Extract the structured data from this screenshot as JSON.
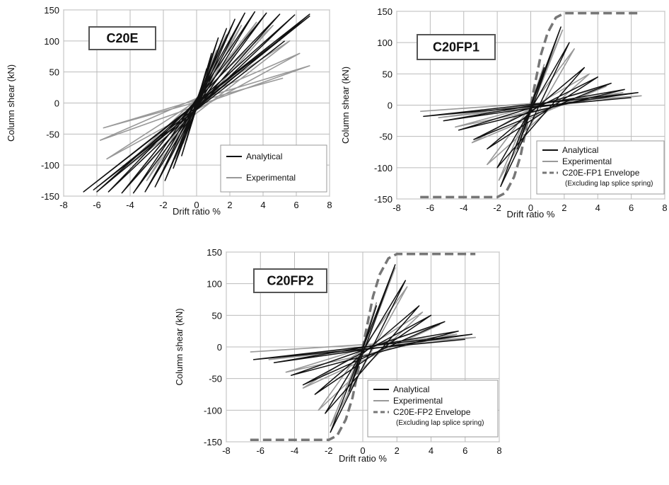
{
  "chart_data": [
    {
      "id": "c20e",
      "type": "line",
      "label": "C20E",
      "xlabel": "Drift ratio %",
      "ylabel": "Column shear (kN)",
      "xlim": [
        -8,
        8
      ],
      "ylim": [
        -150,
        150
      ],
      "xticks": [
        -8,
        -6,
        -4,
        -2,
        0,
        2,
        4,
        6,
        8
      ],
      "yticks": [
        150,
        100,
        50,
        0,
        -50,
        -100,
        -150
      ],
      "grid": true,
      "legend_position": "bottom-right",
      "series": [
        {
          "name": "Analytical",
          "color": "#111111",
          "style": "solid",
          "x": [
            0,
            0.6,
            -0.6,
            0.9,
            -0.9,
            1.3,
            -1.4,
            1.8,
            -1.9,
            2.3,
            -2.5,
            2.9,
            -3.1,
            3.5,
            -3.8,
            4.2,
            -4.5,
            5.0,
            -5.3,
            5.9,
            -6.0,
            6.8,
            -6.8,
            6.8,
            -6.2,
            5.3
          ],
          "y": [
            0,
            55,
            -60,
            80,
            -85,
            105,
            -105,
            120,
            -125,
            135,
            -135,
            145,
            -143,
            147,
            -145,
            145,
            -145,
            143,
            -143,
            142,
            -143,
            143,
            -143,
            140,
            -140,
            100
          ]
        },
        {
          "name": "Experimental",
          "color": "#999999",
          "style": "solid",
          "x": [
            0,
            0.7,
            -0.8,
            1.2,
            -1.3,
            1.8,
            -2.0,
            2.7,
            -3.0,
            3.6,
            -4.0,
            4.6,
            -5.0,
            5.6,
            -5.4,
            6.2,
            -5.8,
            6.8,
            -5.6,
            5.2
          ],
          "y": [
            0,
            60,
            -65,
            85,
            -90,
            110,
            -110,
            125,
            -125,
            130,
            -130,
            125,
            -120,
            100,
            -90,
            80,
            -60,
            60,
            -40,
            40
          ]
        }
      ]
    },
    {
      "id": "c20fp1",
      "type": "line",
      "label": "C20FP1",
      "xlabel": "Drift ratio %",
      "ylabel": "Column shear (kN)",
      "xlim": [
        -8,
        8
      ],
      "ylim": [
        -150,
        150
      ],
      "xticks": [
        -8,
        -6,
        -4,
        -2,
        0,
        2,
        4,
        6,
        8
      ],
      "yticks": [
        150,
        100,
        50,
        0,
        -50,
        -100,
        -150
      ],
      "grid": true,
      "legend_position": "bottom-right",
      "series": [
        {
          "name": "Analytical",
          "color": "#111111",
          "style": "solid",
          "x": [
            0,
            0.8,
            -0.8,
            1.8,
            -1.8,
            2.3,
            -2.0,
            3.2,
            -2.6,
            4.0,
            -3.4,
            4.8,
            -4.3,
            5.6,
            -5.2,
            6.4,
            -6.4,
            6.0
          ],
          "y": [
            0,
            60,
            -70,
            125,
            -130,
            100,
            -100,
            60,
            -70,
            45,
            -55,
            35,
            -40,
            25,
            -25,
            20,
            -18,
            12
          ]
        },
        {
          "name": "Experimental",
          "color": "#999999",
          "style": "solid",
          "x": [
            0,
            0.8,
            -0.9,
            1.9,
            -1.9,
            2.6,
            -2.6,
            3.5,
            -3.5,
            4.5,
            -4.5,
            5.5,
            -5.5,
            6.6,
            -6.6
          ],
          "y": [
            0,
            65,
            -70,
            120,
            -120,
            90,
            -95,
            50,
            -60,
            30,
            -35,
            20,
            -20,
            15,
            -10
          ]
        },
        {
          "name": "C20E-FP1 Envelope",
          "color": "#777777",
          "style": "dashed",
          "x": [
            -6.6,
            -2.0,
            -1.5,
            -1.0,
            -0.6,
            0,
            0.6,
            1.0,
            1.5,
            2.0,
            6.6
          ],
          "y": [
            -147,
            -147,
            -140,
            -115,
            -80,
            0,
            80,
            115,
            140,
            147,
            147
          ]
        }
      ]
    },
    {
      "id": "c20fp2",
      "type": "line",
      "label": "C20FP2",
      "xlabel": "Drift ratio %",
      "ylabel": "Column shear (kN)",
      "xlim": [
        -8,
        8
      ],
      "ylim": [
        -150,
        150
      ],
      "xticks": [
        -8,
        -6,
        -4,
        -2,
        0,
        2,
        4,
        6,
        8
      ],
      "yticks": [
        150,
        100,
        50,
        0,
        -50,
        -100,
        -150
      ],
      "grid": true,
      "legend_position": "bottom-right",
      "series": [
        {
          "name": "Analytical",
          "color": "#111111",
          "style": "solid",
          "x": [
            0,
            0.8,
            -0.8,
            1.9,
            -1.9,
            2.5,
            -2.2,
            3.3,
            -2.8,
            4.0,
            -3.5,
            4.8,
            -4.2,
            5.6,
            -5.2,
            6.4,
            -6.4,
            6.0
          ],
          "y": [
            0,
            65,
            -70,
            130,
            -135,
            105,
            -105,
            65,
            -75,
            50,
            -60,
            40,
            -45,
            25,
            -25,
            20,
            -20,
            12
          ]
        },
        {
          "name": "Experimental",
          "color": "#999999",
          "style": "solid",
          "x": [
            0,
            0.8,
            -0.9,
            1.9,
            -1.9,
            2.6,
            -2.6,
            3.5,
            -3.5,
            4.5,
            -4.5,
            5.5,
            -5.5,
            6.6,
            -6.6
          ],
          "y": [
            0,
            70,
            -75,
            125,
            -125,
            95,
            -100,
            55,
            -65,
            35,
            -40,
            20,
            -20,
            15,
            -8
          ]
        },
        {
          "name": "C20E-FP2 Envelope",
          "color": "#777777",
          "style": "dashed",
          "x": [
            -6.6,
            -2.0,
            -1.5,
            -1.0,
            -0.6,
            0,
            0.6,
            1.0,
            1.5,
            2.0,
            6.6
          ],
          "y": [
            -147,
            -147,
            -140,
            -115,
            -80,
            0,
            80,
            115,
            140,
            147,
            147
          ]
        }
      ]
    }
  ],
  "legend_notes": {
    "c20fp1": "(Excluding lap splice spring)",
    "c20fp2": "(Excluding lap splice spring)"
  },
  "colors": {
    "analytical": "#111111",
    "experimental": "#999999",
    "envelope": "#777777",
    "grid": "#bbbbbb"
  }
}
